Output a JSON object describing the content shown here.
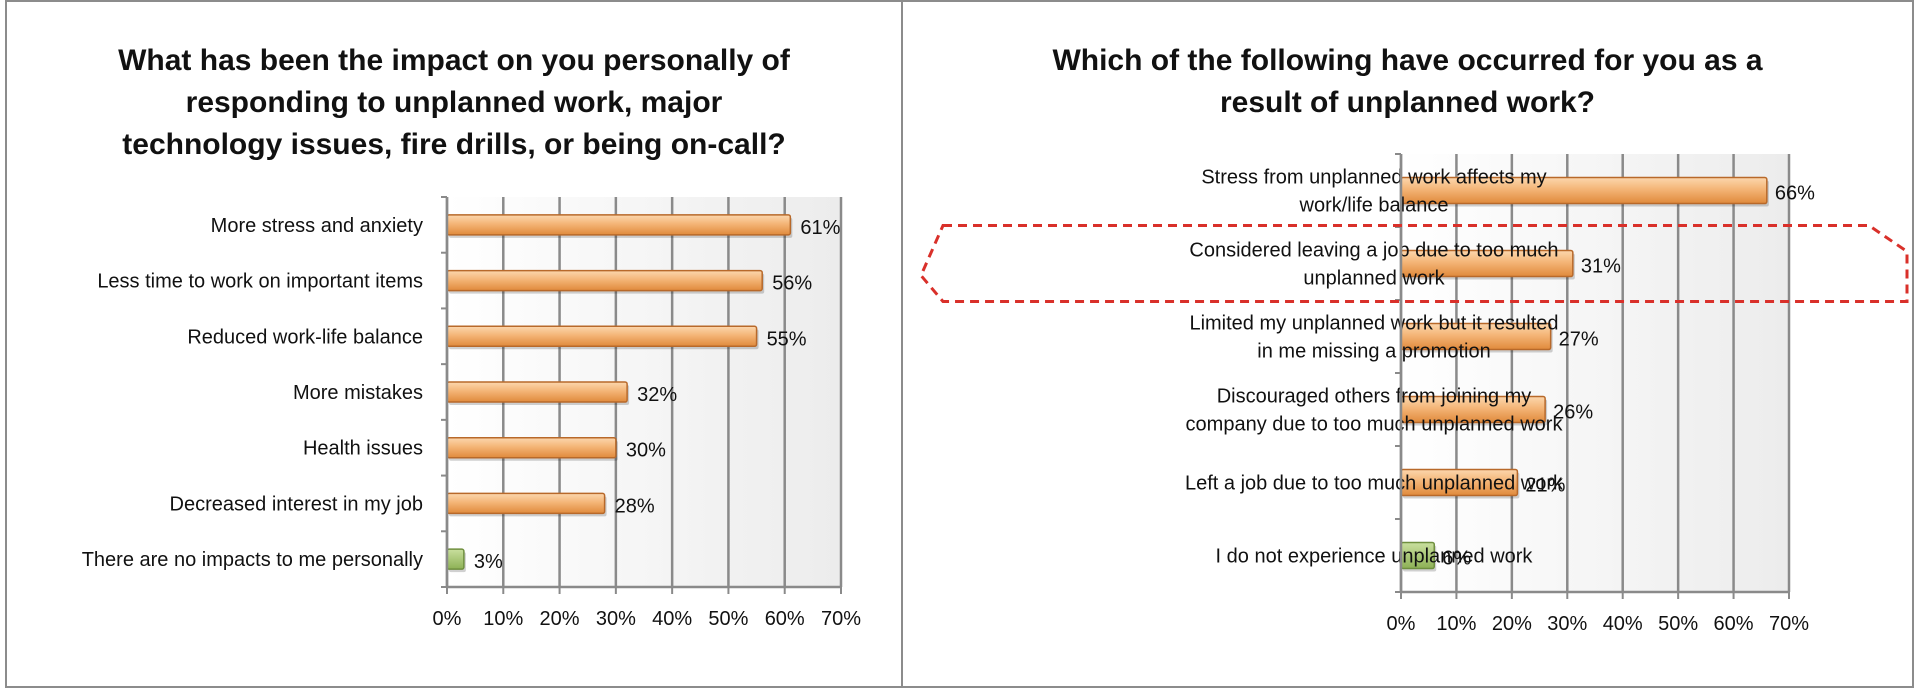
{
  "chart_data": [
    {
      "id": "left",
      "type": "bar",
      "orientation": "horizontal",
      "title_lines": [
        "What has been the impact on you personally of",
        "responding to unplanned work, major",
        "technology issues, fire drills, or being on-call?"
      ],
      "categories": [
        [
          "More stress and anxiety"
        ],
        [
          "Less time to work on important items"
        ],
        [
          "Reduced work-life balance"
        ],
        [
          "More mistakes"
        ],
        [
          "Health issues"
        ],
        [
          "Decreased interest in my job"
        ],
        [
          "There are no impacts to me personally"
        ]
      ],
      "values": [
        61,
        56,
        55,
        32,
        30,
        28,
        3
      ],
      "value_labels": [
        "61%",
        "56%",
        "55%",
        "32%",
        "30%",
        "28%",
        "3%"
      ],
      "bar_colors": [
        "orange",
        "orange",
        "orange",
        "orange",
        "orange",
        "orange",
        "green"
      ],
      "xlim": [
        0,
        70
      ],
      "x_ticks": [
        "0%",
        "10%",
        "20%",
        "30%",
        "40%",
        "50%",
        "60%",
        "70%"
      ],
      "grid": "vertical",
      "legend": "none"
    },
    {
      "id": "right",
      "type": "bar",
      "orientation": "horizontal",
      "title_lines": [
        "Which of the following have occurred for you as a",
        "result of unplanned work?"
      ],
      "categories": [
        [
          "Stress from unplanned work affects my",
          "work/life balance"
        ],
        [
          "Considered leaving a job due to too much",
          "unplanned work"
        ],
        [
          "Limited my unplanned work but it resulted",
          "in me missing a promotion"
        ],
        [
          "Discouraged others from joining my",
          "company due to too much unplanned work"
        ],
        [
          "Left a job due to too much unplanned work"
        ],
        [
          "I do not experience unplanned work"
        ]
      ],
      "values": [
        66,
        31,
        27,
        26,
        21,
        6
      ],
      "value_labels": [
        "66%",
        "31%",
        "27%",
        "26%",
        "21%",
        "6%"
      ],
      "bar_colors": [
        "orange",
        "orange",
        "orange",
        "orange",
        "orange",
        "green"
      ],
      "highlighted_category_index": 1,
      "xlim": [
        0,
        70
      ],
      "x_ticks": [
        "0%",
        "10%",
        "20%",
        "30%",
        "40%",
        "50%",
        "60%",
        "70%"
      ],
      "grid": "vertical",
      "legend": "none"
    }
  ],
  "colors": {
    "bar_orange_light": "#fcd7ae",
    "bar_orange_dark": "#e08a3c",
    "bar_orange_stroke": "#b8692a",
    "bar_green_light": "#c9df9e",
    "bar_green_dark": "#8db155",
    "bar_green_stroke": "#6f8f3f",
    "grid": "#8a8a8a",
    "highlight": "#d9302a",
    "panel_border": "#8c8c8c"
  }
}
